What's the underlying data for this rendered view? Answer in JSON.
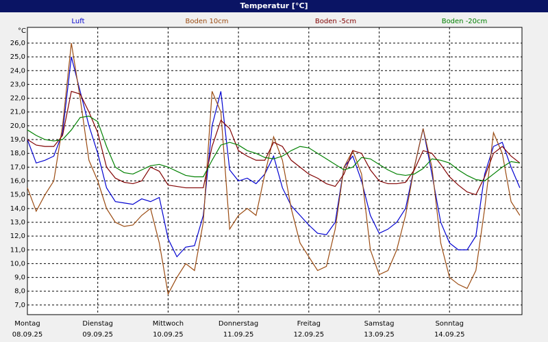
{
  "chart_data": {
    "type": "line",
    "title": "Temperatur [°C]",
    "y_unit": "°C",
    "x": [
      0,
      0.125,
      0.25,
      0.375,
      0.5,
      0.625,
      0.75,
      0.875,
      1,
      1.125,
      1.25,
      1.375,
      1.5,
      1.625,
      1.75,
      1.875,
      2,
      2.125,
      2.25,
      2.375,
      2.5,
      2.625,
      2.75,
      2.875,
      3,
      3.125,
      3.25,
      3.375,
      3.5,
      3.625,
      3.75,
      3.875,
      4,
      4.125,
      4.25,
      4.375,
      4.5,
      4.625,
      4.75,
      4.875,
      5,
      5.125,
      5.25,
      5.375,
      5.5,
      5.625,
      5.75,
      5.875,
      6,
      6.125,
      6.25,
      6.375,
      6.5,
      6.625,
      6.75,
      6.875,
      7
    ],
    "series": [
      {
        "name": "Luft",
        "color": "#0000d0",
        "values": [
          19.0,
          17.3,
          17.5,
          17.8,
          19.5,
          25.0,
          22.5,
          20.0,
          18.0,
          15.5,
          14.5,
          14.4,
          14.3,
          14.7,
          14.5,
          14.8,
          11.8,
          10.5,
          11.2,
          11.3,
          13.5,
          20.0,
          22.5,
          16.8,
          16.0,
          16.2,
          15.8,
          16.5,
          17.8,
          15.5,
          14.2,
          13.5,
          12.8,
          12.2,
          12.1,
          13.0,
          17.0,
          17.8,
          16.0,
          13.5,
          12.2,
          12.5,
          13.0,
          14.0,
          17.0,
          19.8,
          16.5,
          13.0,
          11.5,
          11.0,
          11.0,
          12.0,
          16.5,
          18.5,
          18.8,
          17.0,
          15.5
        ]
      },
      {
        "name": "Boden 10cm",
        "color": "#9a4a10",
        "values": [
          15.5,
          13.8,
          15.0,
          16.0,
          20.0,
          26.0,
          22.0,
          17.5,
          16.0,
          14.0,
          13.0,
          12.7,
          12.8,
          13.5,
          14.0,
          11.5,
          7.8,
          9.0,
          10.0,
          9.5,
          13.0,
          22.5,
          21.0,
          12.5,
          13.5,
          14.0,
          13.5,
          16.5,
          19.2,
          17.5,
          14.0,
          11.5,
          10.5,
          9.5,
          9.8,
          12.5,
          17.0,
          18.2,
          16.5,
          11.0,
          9.2,
          9.5,
          11.0,
          13.5,
          17.0,
          19.8,
          17.0,
          11.5,
          9.0,
          8.5,
          8.2,
          9.5,
          14.0,
          19.5,
          18.0,
          14.5,
          13.5
        ]
      },
      {
        "name": "Boden -5cm",
        "color": "#800000",
        "values": [
          19.0,
          18.6,
          18.5,
          18.5,
          19.3,
          22.5,
          22.3,
          21.0,
          19.5,
          17.0,
          16.2,
          15.9,
          15.8,
          16.0,
          17.0,
          16.7,
          15.7,
          15.6,
          15.5,
          15.5,
          15.5,
          18.5,
          20.4,
          19.8,
          18.2,
          17.8,
          17.5,
          17.5,
          18.8,
          18.5,
          17.5,
          17.0,
          16.5,
          16.2,
          15.8,
          15.6,
          16.5,
          18.2,
          18.0,
          16.8,
          16.0,
          15.8,
          15.8,
          15.9,
          16.8,
          18.2,
          18.0,
          17.2,
          16.3,
          15.7,
          15.2,
          15.0,
          16.3,
          18.0,
          18.5,
          17.8,
          17.3
        ]
      },
      {
        "name": "Boden -20cm",
        "color": "#008000",
        "values": [
          19.7,
          19.3,
          19.0,
          18.9,
          19.0,
          19.7,
          20.6,
          20.7,
          20.3,
          18.5,
          17.0,
          16.6,
          16.5,
          16.8,
          17.1,
          17.2,
          17.0,
          16.7,
          16.4,
          16.3,
          16.3,
          17.5,
          18.6,
          18.8,
          18.6,
          18.2,
          18.0,
          17.7,
          17.6,
          17.8,
          18.2,
          18.5,
          18.4,
          18.0,
          17.6,
          17.2,
          16.8,
          17.0,
          17.7,
          17.6,
          17.2,
          16.8,
          16.5,
          16.4,
          16.5,
          16.9,
          17.6,
          17.5,
          17.3,
          16.8,
          16.4,
          16.1,
          16.0,
          16.5,
          17.0,
          17.4,
          17.3
        ]
      }
    ],
    "xlim": [
      0,
      7.03
    ],
    "ylim": [
      6.3,
      27.14
    ],
    "xticks": [
      {
        "value": 0,
        "label": "Montag"
      },
      {
        "value": 1,
        "label": "Dienstag"
      },
      {
        "value": 2,
        "label": "Mittwoch"
      },
      {
        "value": 3,
        "label": "Donnerstag"
      },
      {
        "value": 4,
        "label": "Freitag"
      },
      {
        "value": 5,
        "label": "Samstag"
      },
      {
        "value": 6,
        "label": "Sonntag"
      }
    ],
    "xtick_dates": [
      "08.09.25",
      "09.09.25",
      "10.09.25",
      "11.09.25",
      "12.09.25",
      "13.09.25",
      "14.09.25"
    ],
    "yticks": [
      {
        "value": 7,
        "label": "7,0"
      },
      {
        "value": 8,
        "label": "8,0"
      },
      {
        "value": 9,
        "label": "9,0"
      },
      {
        "value": 10,
        "label": "10,0"
      },
      {
        "value": 11,
        "label": "11,0"
      },
      {
        "value": 12,
        "label": "12,0"
      },
      {
        "value": 13,
        "label": "13,0"
      },
      {
        "value": 14,
        "label": "14,0"
      },
      {
        "value": 15,
        "label": "15,0"
      },
      {
        "value": 16,
        "label": "16,0"
      },
      {
        "value": 17,
        "label": "17,0"
      },
      {
        "value": 18,
        "label": "18,0"
      },
      {
        "value": 19,
        "label": "19,0"
      },
      {
        "value": 20,
        "label": "20,0"
      },
      {
        "value": 21,
        "label": "21,0"
      },
      {
        "value": 22,
        "label": "22,0"
      },
      {
        "value": 23,
        "label": "23,0"
      },
      {
        "value": 24,
        "label": "24,0"
      },
      {
        "value": 25,
        "label": "25,0"
      },
      {
        "value": 26,
        "label": "26,0"
      }
    ],
    "grid": true
  }
}
